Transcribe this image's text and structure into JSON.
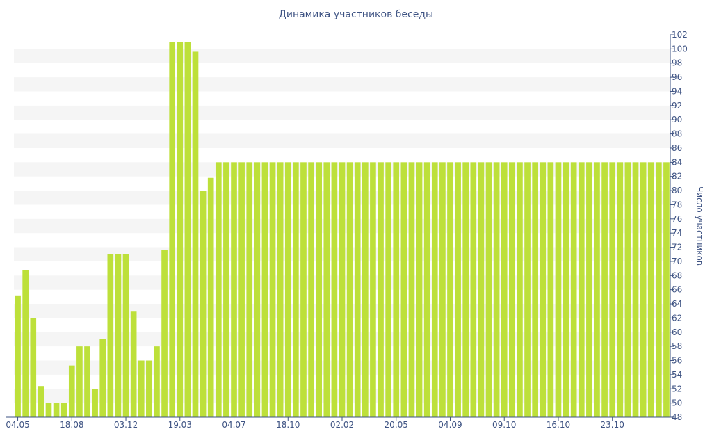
{
  "chart_data": {
    "type": "bar",
    "title": "Динамика участников беседы",
    "ylabel": "Число участников",
    "xlabel": "",
    "ylim": [
      48,
      102
    ],
    "y_ticks": [
      48,
      50,
      52,
      54,
      56,
      58,
      60,
      62,
      64,
      66,
      68,
      70,
      72,
      74,
      76,
      78,
      80,
      82,
      84,
      86,
      88,
      90,
      92,
      94,
      96,
      98,
      100,
      102
    ],
    "x_tick_labels": [
      {
        "index": 0,
        "label": "04.05"
      },
      {
        "index": 7,
        "label": "18.08"
      },
      {
        "index": 14,
        "label": "03.12"
      },
      {
        "index": 21,
        "label": "19.03"
      },
      {
        "index": 28,
        "label": "04.07"
      },
      {
        "index": 35,
        "label": "18.10"
      },
      {
        "index": 42,
        "label": "02.02"
      },
      {
        "index": 49,
        "label": "20.05"
      },
      {
        "index": 56,
        "label": "04.09"
      },
      {
        "index": 63,
        "label": "09.10"
      },
      {
        "index": 70,
        "label": "16.10"
      },
      {
        "index": 77,
        "label": "23.10"
      }
    ],
    "values": [
      65.2,
      68.8,
      62,
      52.4,
      50,
      50,
      50,
      55.3,
      58,
      58,
      52,
      59,
      71,
      71,
      71,
      63,
      56,
      56,
      58,
      71.6,
      101,
      101,
      101,
      99.6,
      80,
      81.8,
      84,
      84,
      84,
      84,
      84,
      84,
      84,
      84,
      84,
      84,
      84,
      84,
      84,
      84,
      84,
      84,
      84,
      84,
      84,
      84,
      84,
      84,
      84,
      84,
      84,
      84,
      84,
      84,
      84,
      84,
      84,
      84,
      84,
      84,
      84,
      84,
      84,
      84,
      84,
      84,
      84,
      84,
      84,
      84,
      84,
      84,
      84,
      84,
      84,
      84,
      84,
      84,
      84,
      84,
      84,
      84,
      84,
      84,
      84
    ],
    "bar_color": "#bde03a",
    "band_color": "#f5f5f5",
    "text_color": "#3e5383",
    "y_axis_side": "right",
    "grid": "alternating horizontal bands"
  }
}
